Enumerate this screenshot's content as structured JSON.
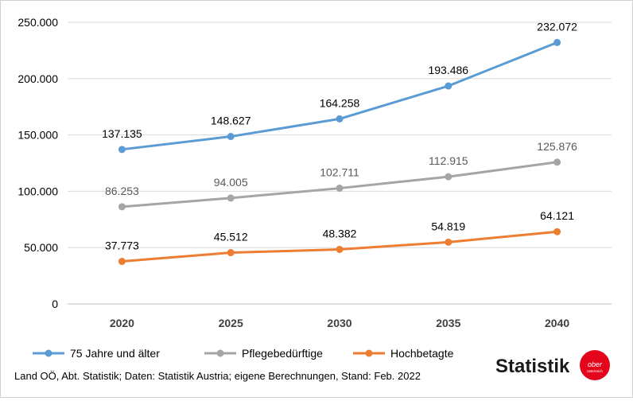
{
  "chart_data": {
    "type": "line",
    "title": "",
    "xlabel": "",
    "ylabel": "",
    "categories": [
      "2020",
      "2025",
      "2030",
      "2035",
      "2040"
    ],
    "ylim": [
      0,
      250000
    ],
    "y_ticks": [
      0,
      50000,
      100000,
      150000,
      200000,
      250000
    ],
    "y_tick_labels": [
      "0",
      "50.000",
      "100.000",
      "150.000",
      "200.000",
      "250.000"
    ],
    "grid": true,
    "legend_position": "bottom-left",
    "series": [
      {
        "name": "75 Jahre und älter",
        "color": "#5b9bd5",
        "label_color": "#000000",
        "values": [
          137135,
          148627,
          164258,
          193486,
          232072
        ],
        "labels": [
          "137.135",
          "148.627",
          "164.258",
          "193.486",
          "232.072"
        ]
      },
      {
        "name": "Pflegebedürftige",
        "color": "#a5a5a5",
        "label_color": "#595959",
        "values": [
          86253,
          94005,
          102711,
          112915,
          125876
        ],
        "labels": [
          "86.253",
          "94.005",
          "102.711",
          "112.915",
          "125.876"
        ]
      },
      {
        "name": "Hochbetagte",
        "color": "#ed7d31",
        "label_color": "#000000",
        "values": [
          37773,
          45512,
          48382,
          54819,
          64121
        ],
        "labels": [
          "37.773",
          "45.512",
          "48.382",
          "54.819",
          "64.121"
        ]
      }
    ]
  },
  "footer": {
    "source": "Land OÖ, Abt. Statistik; Daten: Statistik Austria; eigene Berechnungen, Stand: Feb. 2022",
    "brand": "Statistik",
    "logo_text": "ober",
    "logo_subtext": "österreich",
    "logo_color": "#e3051b"
  }
}
